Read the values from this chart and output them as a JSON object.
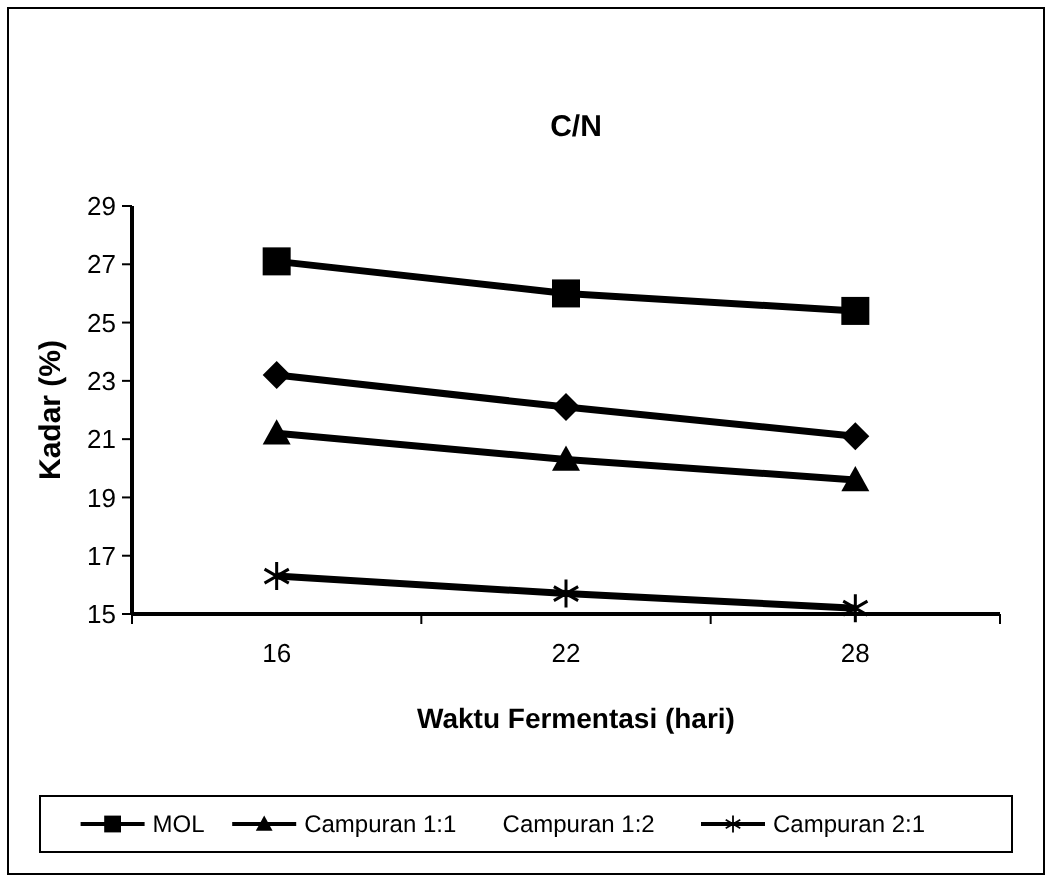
{
  "chart_data": {
    "type": "line",
    "title": "C/N",
    "xlabel": "Waktu Fermentasi (hari)",
    "ylabel": "Kadar (%)",
    "categories": [
      "16",
      "22",
      "28"
    ],
    "ylim": [
      15,
      29
    ],
    "yticks": [
      15,
      17,
      19,
      21,
      23,
      25,
      27,
      29
    ],
    "grid": false,
    "legend": "bottom",
    "series": [
      {
        "color": "#000000",
        "marker": "diamond",
        "values": [
          23.2,
          22.1,
          21.1
        ]
      },
      {
        "name": "MOL",
        "color": "#000000",
        "marker": "square",
        "values": [
          27.1,
          26.0,
          25.4
        ]
      },
      {
        "name": "Campuran 1:1",
        "color": "#000000",
        "marker": "triangle",
        "values": [
          21.2,
          20.3,
          19.6
        ]
      },
      {
        "name": "Campuran 1:2",
        "marker": "none",
        "values": [
          null,
          null,
          null
        ]
      },
      {
        "name": "Campuran 2:1",
        "color": "#000000",
        "marker": "cross",
        "values": [
          16.3,
          15.7,
          15.2
        ]
      }
    ]
  }
}
